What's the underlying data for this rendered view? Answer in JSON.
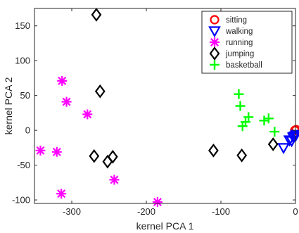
{
  "chart_data": {
    "type": "scatter",
    "title": "",
    "xlabel": "kernel PCA 1",
    "ylabel": "kernel PCA 2",
    "xlim": [
      -350,
      0
    ],
    "ylim": [
      -105,
      175
    ],
    "xticks": [
      -300,
      -200,
      -100,
      0
    ],
    "yticks": [
      -100,
      -50,
      0,
      50,
      100,
      150
    ],
    "xtick_labels": [
      "-300",
      "-200",
      "-100",
      "0"
    ],
    "ytick_labels": [
      "-100",
      "-50",
      "0",
      "50",
      "100",
      "150"
    ],
    "grid": false,
    "legend_position": "top-right",
    "series": [
      {
        "name": "sitting",
        "marker": "circle",
        "color": "#ff0000",
        "points": [
          [
            -1,
            0
          ],
          [
            0,
            0
          ],
          [
            1,
            1
          ]
        ]
      },
      {
        "name": "walking",
        "marker": "triangle-down",
        "color": "#0000ff",
        "points": [
          [
            -16,
            -25
          ],
          [
            -8,
            -14
          ],
          [
            -5,
            -15
          ],
          [
            -3,
            -10
          ],
          [
            -2,
            -9
          ],
          [
            0,
            -8
          ],
          [
            1,
            -6
          ]
        ]
      },
      {
        "name": "running",
        "marker": "asterisk",
        "color": "#ff00ff",
        "points": [
          [
            -313,
            71
          ],
          [
            -307,
            41
          ],
          [
            -279,
            23
          ],
          [
            -342,
            -29
          ],
          [
            -320,
            -31
          ],
          [
            -314,
            -91
          ],
          [
            -243,
            -71
          ],
          [
            -185,
            -103
          ]
        ]
      },
      {
        "name": "jumping",
        "marker": "diamond",
        "color": "#000000",
        "points": [
          [
            -267,
            166
          ],
          [
            -262,
            56
          ],
          [
            -270,
            -37
          ],
          [
            -252,
            -45
          ],
          [
            -245,
            -38
          ],
          [
            -110,
            -29
          ],
          [
            -72,
            -36
          ],
          [
            -30,
            -20
          ]
        ]
      },
      {
        "name": "basketball",
        "marker": "plus",
        "color": "#00ff00",
        "points": [
          [
            -76,
            52
          ],
          [
            -74,
            35
          ],
          [
            -63,
            19
          ],
          [
            -67,
            12
          ],
          [
            -71,
            6
          ],
          [
            -42,
            14
          ],
          [
            -36,
            17
          ],
          [
            -28,
            -2
          ]
        ]
      }
    ]
  }
}
